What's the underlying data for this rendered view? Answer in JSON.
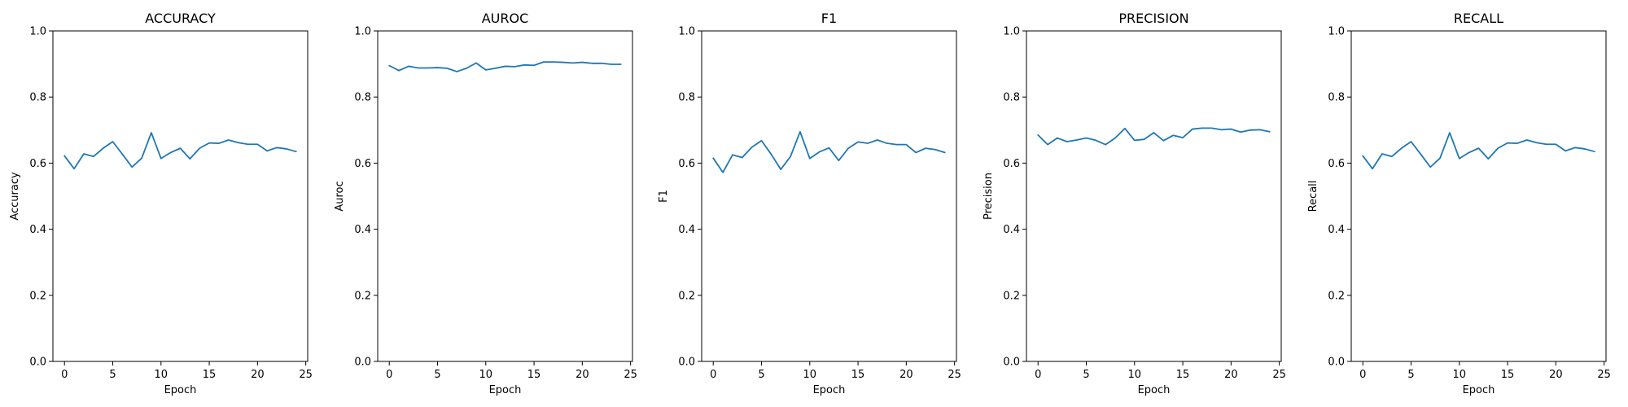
{
  "colors": {
    "series": "#1f77b4",
    "axes": "#000000",
    "background": "#ffffff"
  },
  "chart_data": [
    {
      "type": "line",
      "title": "ACCURACY",
      "xlabel": "Epoch",
      "ylabel": "Accuracy",
      "xlim": [
        -1.2,
        25.2
      ],
      "ylim": [
        0.0,
        1.0
      ],
      "xticks": [
        0,
        5,
        10,
        15,
        20,
        25
      ],
      "yticks": [
        0.0,
        0.2,
        0.4,
        0.6,
        0.8,
        1.0
      ],
      "xtick_labels": [
        "0",
        "5",
        "10",
        "15",
        "20",
        "25"
      ],
      "ytick_labels": [
        "0.0",
        "0.2",
        "0.4",
        "0.6",
        "0.8",
        "1.0"
      ],
      "grid": false,
      "series": [
        {
          "name": "Accuracy",
          "x": [
            0,
            1,
            2,
            3,
            4,
            5,
            6,
            7,
            8,
            9,
            10,
            11,
            12,
            13,
            14,
            15,
            16,
            17,
            18,
            19,
            20,
            21,
            22,
            23,
            24
          ],
          "values": [
            0.622,
            0.583,
            0.628,
            0.62,
            0.645,
            0.665,
            0.627,
            0.588,
            0.615,
            0.692,
            0.614,
            0.632,
            0.645,
            0.613,
            0.645,
            0.661,
            0.66,
            0.67,
            0.662,
            0.657,
            0.657,
            0.637,
            0.647,
            0.643,
            0.635
          ]
        }
      ]
    },
    {
      "type": "line",
      "title": "AUROC",
      "xlabel": "Epoch",
      "ylabel": "Auroc",
      "xlim": [
        -1.2,
        25.2
      ],
      "ylim": [
        0.0,
        1.0
      ],
      "xticks": [
        0,
        5,
        10,
        15,
        20,
        25
      ],
      "yticks": [
        0.0,
        0.2,
        0.4,
        0.6,
        0.8,
        1.0
      ],
      "xtick_labels": [
        "0",
        "5",
        "10",
        "15",
        "20",
        "25"
      ],
      "ytick_labels": [
        "0.0",
        "0.2",
        "0.4",
        "0.6",
        "0.8",
        "1.0"
      ],
      "grid": false,
      "series": [
        {
          "name": "Auroc",
          "x": [
            0,
            1,
            2,
            3,
            4,
            5,
            6,
            7,
            8,
            9,
            10,
            11,
            12,
            13,
            14,
            15,
            16,
            17,
            18,
            19,
            20,
            21,
            22,
            23,
            24
          ],
          "values": [
            0.895,
            0.88,
            0.893,
            0.888,
            0.888,
            0.889,
            0.887,
            0.877,
            0.887,
            0.903,
            0.882,
            0.887,
            0.893,
            0.892,
            0.897,
            0.896,
            0.906,
            0.906,
            0.905,
            0.903,
            0.905,
            0.902,
            0.902,
            0.899,
            0.899
          ]
        }
      ]
    },
    {
      "type": "line",
      "title": "F1",
      "xlabel": "Epoch",
      "ylabel": "F1",
      "xlim": [
        -1.2,
        25.2
      ],
      "ylim": [
        0.0,
        1.0
      ],
      "xticks": [
        0,
        5,
        10,
        15,
        20,
        25
      ],
      "yticks": [
        0.0,
        0.2,
        0.4,
        0.6,
        0.8,
        1.0
      ],
      "xtick_labels": [
        "0",
        "5",
        "10",
        "15",
        "20",
        "25"
      ],
      "ytick_labels": [
        "0.0",
        "0.2",
        "0.4",
        "0.6",
        "0.8",
        "1.0"
      ],
      "grid": false,
      "series": [
        {
          "name": "F1",
          "x": [
            0,
            1,
            2,
            3,
            4,
            5,
            6,
            7,
            8,
            9,
            10,
            11,
            12,
            13,
            14,
            15,
            16,
            17,
            18,
            19,
            20,
            21,
            22,
            23,
            24
          ],
          "values": [
            0.615,
            0.572,
            0.625,
            0.617,
            0.648,
            0.668,
            0.627,
            0.581,
            0.62,
            0.695,
            0.614,
            0.634,
            0.646,
            0.608,
            0.645,
            0.664,
            0.66,
            0.67,
            0.66,
            0.656,
            0.656,
            0.632,
            0.645,
            0.641,
            0.632
          ]
        }
      ]
    },
    {
      "type": "line",
      "title": "PRECISION",
      "xlabel": "Epoch",
      "ylabel": "Precision",
      "xlim": [
        -1.2,
        25.2
      ],
      "ylim": [
        0.0,
        1.0
      ],
      "xticks": [
        0,
        5,
        10,
        15,
        20,
        25
      ],
      "yticks": [
        0.0,
        0.2,
        0.4,
        0.6,
        0.8,
        1.0
      ],
      "xtick_labels": [
        "0",
        "5",
        "10",
        "15",
        "20",
        "25"
      ],
      "ytick_labels": [
        "0.0",
        "0.2",
        "0.4",
        "0.6",
        "0.8",
        "1.0"
      ],
      "grid": false,
      "series": [
        {
          "name": "Precision",
          "x": [
            0,
            1,
            2,
            3,
            4,
            5,
            6,
            7,
            8,
            9,
            10,
            11,
            12,
            13,
            14,
            15,
            16,
            17,
            18,
            19,
            20,
            21,
            22,
            23,
            24
          ],
          "values": [
            0.685,
            0.656,
            0.676,
            0.665,
            0.67,
            0.676,
            0.669,
            0.656,
            0.676,
            0.705,
            0.669,
            0.672,
            0.692,
            0.668,
            0.684,
            0.677,
            0.703,
            0.706,
            0.706,
            0.701,
            0.703,
            0.694,
            0.7,
            0.701,
            0.695
          ]
        }
      ]
    },
    {
      "type": "line",
      "title": "RECALL",
      "xlabel": "Epoch",
      "ylabel": "Recall",
      "xlim": [
        -1.2,
        25.2
      ],
      "ylim": [
        0.0,
        1.0
      ],
      "xticks": [
        0,
        5,
        10,
        15,
        20,
        25
      ],
      "yticks": [
        0.0,
        0.2,
        0.4,
        0.6,
        0.8,
        1.0
      ],
      "xtick_labels": [
        "0",
        "5",
        "10",
        "15",
        "20",
        "25"
      ],
      "ytick_labels": [
        "0.0",
        "0.2",
        "0.4",
        "0.6",
        "0.8",
        "1.0"
      ],
      "grid": false,
      "series": [
        {
          "name": "Recall",
          "x": [
            0,
            1,
            2,
            3,
            4,
            5,
            6,
            7,
            8,
            9,
            10,
            11,
            12,
            13,
            14,
            15,
            16,
            17,
            18,
            19,
            20,
            21,
            22,
            23,
            24
          ],
          "values": [
            0.622,
            0.583,
            0.628,
            0.62,
            0.645,
            0.665,
            0.627,
            0.588,
            0.615,
            0.692,
            0.614,
            0.632,
            0.645,
            0.613,
            0.645,
            0.661,
            0.66,
            0.67,
            0.662,
            0.657,
            0.657,
            0.637,
            0.647,
            0.643,
            0.635
          ]
        }
      ]
    }
  ]
}
